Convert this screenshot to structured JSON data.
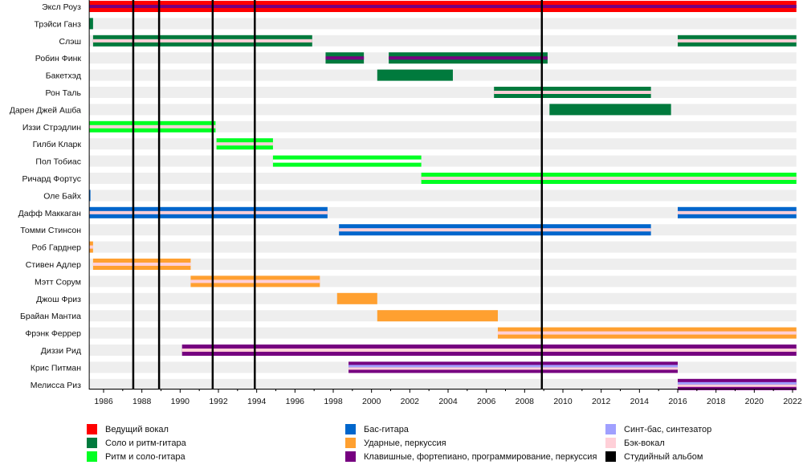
{
  "chart_data": {
    "type": "timeline",
    "title": "",
    "xlim": [
      1985.25,
      2022.2
    ],
    "x_ticks": [
      1986,
      1988,
      1990,
      1992,
      1994,
      1996,
      1998,
      2000,
      2002,
      2004,
      2006,
      2008,
      2010,
      2012,
      2014,
      2016,
      2018,
      2020,
      2022
    ],
    "x_tick_labels": [
      "1986",
      "1988",
      "1990",
      "1992",
      "1994",
      "1996",
      "1998",
      "2000",
      "2002",
      "2004",
      "2006",
      "2008",
      "2010",
      "2012",
      "2014",
      "2016",
      "2018",
      "2020",
      "2022"
    ],
    "colors": {
      "vocal": "#ff0000",
      "lead_guitar": "#007a3d",
      "rhythm_guitar": "#00ff22",
      "bass": "#0066cc",
      "drums": "#ffa030",
      "keys": "#760080",
      "synth": "#a0a0ff",
      "backing": "#ffd0d8",
      "album": "#000000"
    },
    "albums": [
      1987.55,
      1988.9,
      1991.7,
      1993.9,
      2008.9
    ],
    "members": [
      {
        "name": "Эксл Роуз",
        "periods": [
          {
            "from": 1985.25,
            "to": 2022.2,
            "role": "vocal",
            "stripes": [
              "keys"
            ]
          }
        ]
      },
      {
        "name": "Трэйси Ганз",
        "periods": [
          {
            "from": 1985.25,
            "to": 1985.45,
            "role": "lead_guitar",
            "stripes": []
          }
        ]
      },
      {
        "name": "Слэш",
        "periods": [
          {
            "from": 1985.45,
            "to": 1996.9,
            "role": "lead_guitar",
            "stripes": [
              "backing"
            ]
          },
          {
            "from": 2016.0,
            "to": 2022.2,
            "role": "lead_guitar",
            "stripes": [
              "backing"
            ]
          }
        ]
      },
      {
        "name": "Робин Финк",
        "periods": [
          {
            "from": 1997.6,
            "to": 1999.6,
            "role": "lead_guitar",
            "stripes": [
              "keys"
            ]
          },
          {
            "from": 2000.9,
            "to": 2009.2,
            "role": "lead_guitar",
            "stripes": [
              "keys"
            ]
          }
        ]
      },
      {
        "name": "Бакетхэд",
        "periods": [
          {
            "from": 2000.3,
            "to": 2004.25,
            "role": "lead_guitar",
            "stripes": []
          }
        ]
      },
      {
        "name": "Рон Таль",
        "periods": [
          {
            "from": 2006.4,
            "to": 2014.6,
            "role": "lead_guitar",
            "stripes": [
              "backing"
            ]
          }
        ]
      },
      {
        "name": "Дарен Джей Ашба",
        "periods": [
          {
            "from": 2009.3,
            "to": 2015.65,
            "role": "lead_guitar",
            "stripes": []
          }
        ]
      },
      {
        "name": "Иззи Стрэдлин",
        "periods": [
          {
            "from": 1985.25,
            "to": 1991.85,
            "role": "rhythm_guitar",
            "stripes": [
              "backing"
            ]
          }
        ]
      },
      {
        "name": "Гилби Кларк",
        "periods": [
          {
            "from": 1991.9,
            "to": 1994.85,
            "role": "rhythm_guitar",
            "stripes": [
              "backing"
            ]
          }
        ]
      },
      {
        "name": "Пол Тобиас",
        "periods": [
          {
            "from": 1994.85,
            "to": 2002.6,
            "role": "rhythm_guitar",
            "stripes": [
              "white"
            ]
          }
        ]
      },
      {
        "name": "Ричард Фортус",
        "periods": [
          {
            "from": 2002.6,
            "to": 2022.2,
            "role": "rhythm_guitar",
            "stripes": [
              "backing"
            ]
          }
        ]
      },
      {
        "name": "Оле Байх",
        "periods": [
          {
            "from": 1985.25,
            "to": 1985.3,
            "role": "bass",
            "stripes": []
          }
        ]
      },
      {
        "name": "Дафф Маккаган",
        "periods": [
          {
            "from": 1985.25,
            "to": 1997.7,
            "role": "bass",
            "stripes": [
              "backing"
            ]
          },
          {
            "from": 2016.0,
            "to": 2022.2,
            "role": "bass",
            "stripes": [
              "backing"
            ]
          }
        ]
      },
      {
        "name": "Томми Стинсон",
        "periods": [
          {
            "from": 1998.3,
            "to": 2014.6,
            "role": "bass",
            "stripes": [
              "backing"
            ]
          }
        ]
      },
      {
        "name": "Роб Гарднер",
        "periods": [
          {
            "from": 1985.25,
            "to": 1985.45,
            "role": "drums",
            "stripes": [
              "backing"
            ]
          }
        ]
      },
      {
        "name": "Стивен Адлер",
        "periods": [
          {
            "from": 1985.45,
            "to": 1990.55,
            "role": "drums",
            "stripes": [
              "backing"
            ]
          }
        ]
      },
      {
        "name": "Мэтт Сорум",
        "periods": [
          {
            "from": 1990.55,
            "to": 1997.3,
            "role": "drums",
            "stripes": [
              "backing"
            ]
          }
        ]
      },
      {
        "name": "Джош Фриз",
        "periods": [
          {
            "from": 1998.2,
            "to": 2000.3,
            "role": "drums",
            "stripes": []
          }
        ]
      },
      {
        "name": "Брайан Мантиа",
        "periods": [
          {
            "from": 2000.3,
            "to": 2006.6,
            "role": "drums",
            "stripes": []
          }
        ]
      },
      {
        "name": "Фрэнк Феррер",
        "periods": [
          {
            "from": 2006.6,
            "to": 2022.2,
            "role": "drums",
            "stripes": [
              "backing"
            ]
          }
        ]
      },
      {
        "name": "Диззи Рид",
        "periods": [
          {
            "from": 1990.1,
            "to": 2022.2,
            "role": "keys",
            "stripes": [
              "backing"
            ]
          }
        ]
      },
      {
        "name": "Крис Питман",
        "periods": [
          {
            "from": 1998.8,
            "to": 2016.0,
            "role": "keys",
            "stripes": [
              "synth",
              "backing"
            ]
          }
        ]
      },
      {
        "name": "Мелисса Риз",
        "periods": [
          {
            "from": 2016.0,
            "to": 2022.2,
            "role": "keys",
            "stripes": [
              "synth",
              "backing"
            ]
          }
        ]
      }
    ],
    "legend": [
      {
        "label": "Ведущий вокал",
        "role": "vocal"
      },
      {
        "label": "Соло и ритм-гитара",
        "role": "lead_guitar"
      },
      {
        "label": "Ритм и соло-гитара",
        "role": "rhythm_guitar"
      },
      {
        "label": "Бас-гитара",
        "role": "bass"
      },
      {
        "label": "Ударные, перкуссия",
        "role": "drums"
      },
      {
        "label": "Клавишные, фортепиано, программирование, перкуссия",
        "role": "keys"
      },
      {
        "label": "Синт-бас, синтезатор",
        "role": "synth"
      },
      {
        "label": "Бэк-вокал",
        "role": "backing"
      },
      {
        "label": "Студийный альбом",
        "role": "album"
      }
    ]
  }
}
